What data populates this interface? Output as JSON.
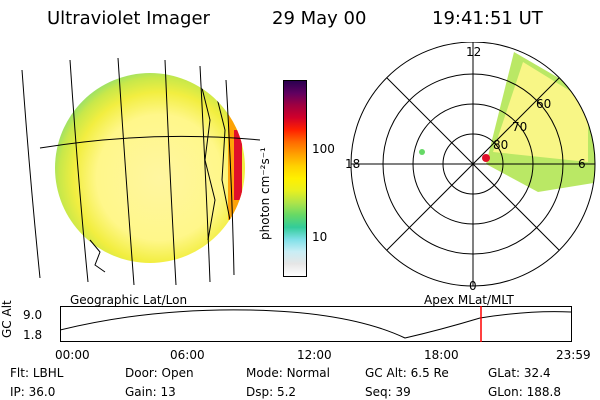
{
  "header": {
    "instrument": "Ultraviolet Imager",
    "date": "29 May 00",
    "time": "19:41:51 UT"
  },
  "colorbar": {
    "unit_label": "photon cm⁻²s⁻¹",
    "tick_labels": [
      "100",
      "10"
    ],
    "colors": [
      "#ffffff",
      "#e6e6e6",
      "#c9eef5",
      "#7fe0e8",
      "#33cc99",
      "#66d966",
      "#aee44a",
      "#e8f020",
      "#fff000",
      "#ffd200",
      "#ffa000",
      "#ff6a00",
      "#ff2000",
      "#d0002a",
      "#a00040",
      "#600060",
      "#2a0050"
    ]
  },
  "polar_plot": {
    "mlt_labels": {
      "top": "12",
      "left": "18",
      "right": "6",
      "bottom": "0"
    },
    "lat_labels": [
      "80",
      "70",
      "60"
    ]
  },
  "timeline": {
    "left_label": "Geographic Lat/Lon",
    "right_label": "Apex MLat/MLT",
    "yaxis_label": "GC Alt",
    "y_top": "9.0",
    "y_bottom": "1.8",
    "x_ticks": [
      "00:00",
      "06:00",
      "12:00",
      "18:00",
      "23:59"
    ],
    "current_time_color": "#ff0000"
  },
  "info_rows": [
    [
      {
        "label": "Flt:",
        "value": "LBHL"
      },
      {
        "label": "Door:",
        "value": "Open"
      },
      {
        "label": "Mode:",
        "value": "Normal"
      },
      {
        "label": "GC Alt:",
        "value": "6.5 Re"
      },
      {
        "label": "GLat:",
        "value": "32.4"
      }
    ],
    [
      {
        "label": "IP:",
        "value": "36.0"
      },
      {
        "label": "Gain:",
        "value": "13"
      },
      {
        "label": "Dsp:",
        "value": "5.2"
      },
      {
        "label": "Seq:",
        "value": "39"
      },
      {
        "label": "GLon:",
        "value": "188.8"
      }
    ]
  ]
}
